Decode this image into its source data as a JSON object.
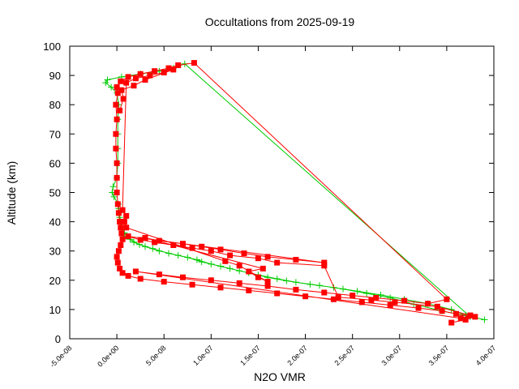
{
  "chart_data": {
    "type": "scatter",
    "title": "Occultations from 2025-09-19",
    "xlabel": "N2O VMR",
    "ylabel": "Altitude (km)",
    "xlim": [
      -5e-08,
      4e-07
    ],
    "ylim": [
      0,
      100
    ],
    "x_tick_values": [
      -5e-08,
      0,
      5e-08,
      1e-07,
      1.5e-07,
      2e-07,
      2.5e-07,
      3e-07,
      3.5e-07,
      4e-07
    ],
    "x_tick_labels": [
      "-5.0e-08",
      "0.0e+00",
      "5.0e-08",
      "1.0e-07",
      "1.5e-07",
      "2.0e-07",
      "2.5e-07",
      "3.0e-07",
      "3.5e-07",
      "4.0e-07"
    ],
    "y_tick_values": [
      0,
      10,
      20,
      30,
      40,
      50,
      60,
      70,
      80,
      90,
      100
    ],
    "y_tick_labels": [
      "0",
      "10",
      "20",
      "30",
      "40",
      "50",
      "60",
      "70",
      "80",
      "90",
      "100"
    ],
    "grid": false,
    "series": [
      {
        "color": "#00cc00",
        "marker": "plus",
        "points": [
          [
            3.9e-07,
            6.5
          ],
          [
            3.7e-07,
            8.0
          ],
          [
            3.55e-07,
            10.0
          ],
          [
            3.3e-07,
            12.0
          ],
          [
            3.05e-07,
            13.5
          ],
          [
            2.8e-07,
            15.0
          ],
          [
            2.55e-07,
            16.3
          ],
          [
            2.3e-07,
            17.5
          ],
          [
            2.05e-07,
            18.6
          ],
          [
            1.8e-07,
            19.8
          ],
          [
            1.6e-07,
            21.0
          ],
          [
            1.4e-07,
            22.5
          ],
          [
            1.2e-07,
            24.0
          ],
          [
            1e-07,
            25.5
          ],
          [
            8.5e-08,
            27.0
          ],
          [
            6.5e-08,
            28.5
          ],
          [
            4.5e-08,
            30.0
          ],
          [
            3e-08,
            31.5
          ],
          [
            1.8e-08,
            33.0
          ],
          [
            1e-08,
            35.0
          ],
          [
            6e-09,
            37.5
          ],
          [
            4e-09,
            40.0
          ],
          [
            2.5e-09,
            43.0
          ],
          [
            1.5e-09,
            46.0
          ],
          [
            -3e-09,
            48.5
          ],
          [
            -5e-09,
            50.0
          ],
          [
            -4e-09,
            52.0
          ],
          [
            0,
            55.0
          ],
          [
            1e-09,
            60.0
          ],
          [
            1e-09,
            65.0
          ],
          [
            1e-09,
            70.0
          ],
          [
            1e-09,
            75.0
          ],
          [
            2e-09,
            80.0
          ],
          [
            0,
            84.0
          ],
          [
            -6e-09,
            86.0
          ],
          [
            -1.2e-08,
            87.5
          ],
          [
            -1e-08,
            88.5
          ],
          [
            5e-09,
            89.5
          ],
          [
            2.5e-08,
            90.5
          ],
          [
            4.5e-08,
            91.5
          ],
          [
            6e-08,
            92.5
          ],
          [
            7.2e-08,
            94.0
          ],
          [
            3.75e-07,
            7.5
          ],
          [
            3.45e-07,
            9.5
          ],
          [
            3.15e-07,
            11.8
          ],
          [
            2.9e-07,
            14.0
          ],
          [
            2.65e-07,
            15.5
          ],
          [
            2.4e-07,
            17.0
          ],
          [
            2.15e-07,
            18.2
          ],
          [
            1.9e-07,
            19.3
          ],
          [
            1.7e-07,
            20.5
          ],
          [
            1.5e-07,
            21.8
          ],
          [
            1.3e-07,
            23.2
          ],
          [
            1.1e-07,
            24.8
          ],
          [
            9e-08,
            26.3
          ],
          [
            7.5e-08,
            27.8
          ],
          [
            5.5e-08,
            29.2
          ],
          [
            3.8e-08,
            30.8
          ],
          [
            2.4e-08,
            32.2
          ],
          [
            1.4e-08,
            34.0
          ],
          [
            8e-09,
            36.2
          ],
          [
            5e-09,
            38.5
          ],
          [
            3e-09,
            41.5
          ],
          [
            2e-09,
            44.5
          ]
        ]
      },
      {
        "color": "#ff0000",
        "marker": "square",
        "points": [
          [
            3.55e-07,
            5.5
          ],
          [
            3.7e-07,
            6.5
          ],
          [
            3.8e-07,
            7.5
          ],
          [
            3.6e-07,
            8.5
          ],
          [
            3.45e-07,
            9.5
          ],
          [
            3.2e-07,
            10.5
          ],
          [
            2.9e-07,
            11.5
          ],
          [
            2.6e-07,
            12.5
          ],
          [
            2.3e-07,
            13.5
          ],
          [
            2e-07,
            14.5
          ],
          [
            1.7e-07,
            15.5
          ],
          [
            1.4e-07,
            16.5
          ],
          [
            1.1e-07,
            17.5
          ],
          [
            8e-08,
            18.5
          ],
          [
            5e-08,
            19.5
          ],
          [
            2.5e-08,
            20.5
          ],
          [
            1.2e-08,
            21.5
          ],
          [
            6e-09,
            22.5
          ],
          [
            3e-09,
            24.0
          ],
          [
            1e-09,
            26.0
          ],
          [
            0,
            28.0
          ],
          [
            2e-09,
            30.0
          ],
          [
            4e-09,
            32.0
          ],
          [
            6e-09,
            34.0
          ],
          [
            5e-09,
            36.0
          ],
          [
            4e-09,
            38.0
          ],
          [
            3e-09,
            40.0
          ],
          [
            2e-09,
            43.0
          ],
          [
            1e-09,
            46.0
          ],
          [
            0,
            50.0
          ],
          [
            0,
            55.0
          ],
          [
            0,
            60.0
          ],
          [
            -1e-09,
            65.0
          ],
          [
            -1e-09,
            70.0
          ],
          [
            0,
            75.0
          ],
          [
            -1e-09,
            80.0
          ],
          [
            1e-09,
            84.0
          ],
          [
            0,
            86.0
          ],
          [
            4e-09,
            88.0
          ],
          [
            1.2e-08,
            89.5
          ],
          [
            2.5e-08,
            90.5
          ],
          [
            4e-08,
            91.5
          ],
          [
            5.5e-08,
            92.5
          ],
          [
            6.5e-08,
            93.5
          ],
          [
            8.2e-08,
            94.3
          ],
          [
            3.5e-07,
            13.5
          ],
          [
            3.3e-07,
            12.0
          ],
          [
            3.05e-07,
            13.0
          ],
          [
            2.75e-07,
            14.0
          ],
          [
            2.5e-07,
            14.8
          ],
          [
            2.2e-07,
            15.8
          ],
          [
            1.9e-07,
            16.8
          ],
          [
            1.6e-07,
            18.0
          ],
          [
            1.3e-07,
            19.0
          ],
          [
            1e-07,
            20.0
          ],
          [
            7e-08,
            21.0
          ],
          [
            4.5e-08,
            22.0
          ],
          [
            2e-08,
            23.0
          ],
          [
            3.65e-07,
            7.0
          ],
          [
            3.75e-07,
            8.0
          ],
          [
            3.4e-07,
            11.0
          ],
          [
            2.95e-07,
            12.5
          ],
          [
            2.7e-07,
            13.2
          ],
          [
            2.35e-07,
            14.2
          ],
          [
            2.2e-07,
            25.0
          ],
          [
            1.7e-07,
            26.0
          ],
          [
            1.5e-07,
            27.5
          ],
          [
            1.2e-07,
            28.5
          ],
          [
            1e-07,
            30.0
          ],
          [
            8e-08,
            31.0
          ],
          [
            6e-08,
            32.0
          ],
          [
            4e-08,
            33.0
          ],
          [
            2.5e-08,
            33.8
          ],
          [
            1.2e-08,
            35.0
          ],
          [
            2.2e-07,
            26.0
          ],
          [
            1.9e-07,
            27.0
          ],
          [
            1.6e-07,
            28.0
          ],
          [
            1.35e-07,
            29.2
          ],
          [
            1.1e-07,
            30.5
          ],
          [
            9e-08,
            31.5
          ],
          [
            7e-08,
            32.5
          ],
          [
            4.5e-08,
            33.5
          ],
          [
            3e-08,
            34.5
          ],
          [
            1.55e-07,
            24.0
          ],
          [
            1.4e-07,
            23.0
          ],
          [
            1.5e-07,
            21.0
          ],
          [
            1.6e-07,
            19.5
          ],
          [
            1.3e-07,
            25.0
          ],
          [
            1.15e-07,
            26.5
          ],
          [
            1e-08,
            38.0
          ],
          [
            8e-09,
            40.0
          ],
          [
            1e-08,
            42.0
          ],
          [
            6e-09,
            44.0
          ],
          [
            1e-08,
            87.5
          ],
          [
            2e-08,
            89.0
          ],
          [
            3.5e-08,
            90.0
          ],
          [
            5e-08,
            91.0
          ],
          [
            6e-08,
            92.0
          ],
          [
            3e-08,
            88.5
          ],
          [
            1.8e-08,
            86.5
          ],
          [
            5e-09,
            85.0
          ],
          [
            7e-09,
            82.0
          ],
          [
            3e-09,
            78.0
          ]
        ]
      }
    ]
  }
}
